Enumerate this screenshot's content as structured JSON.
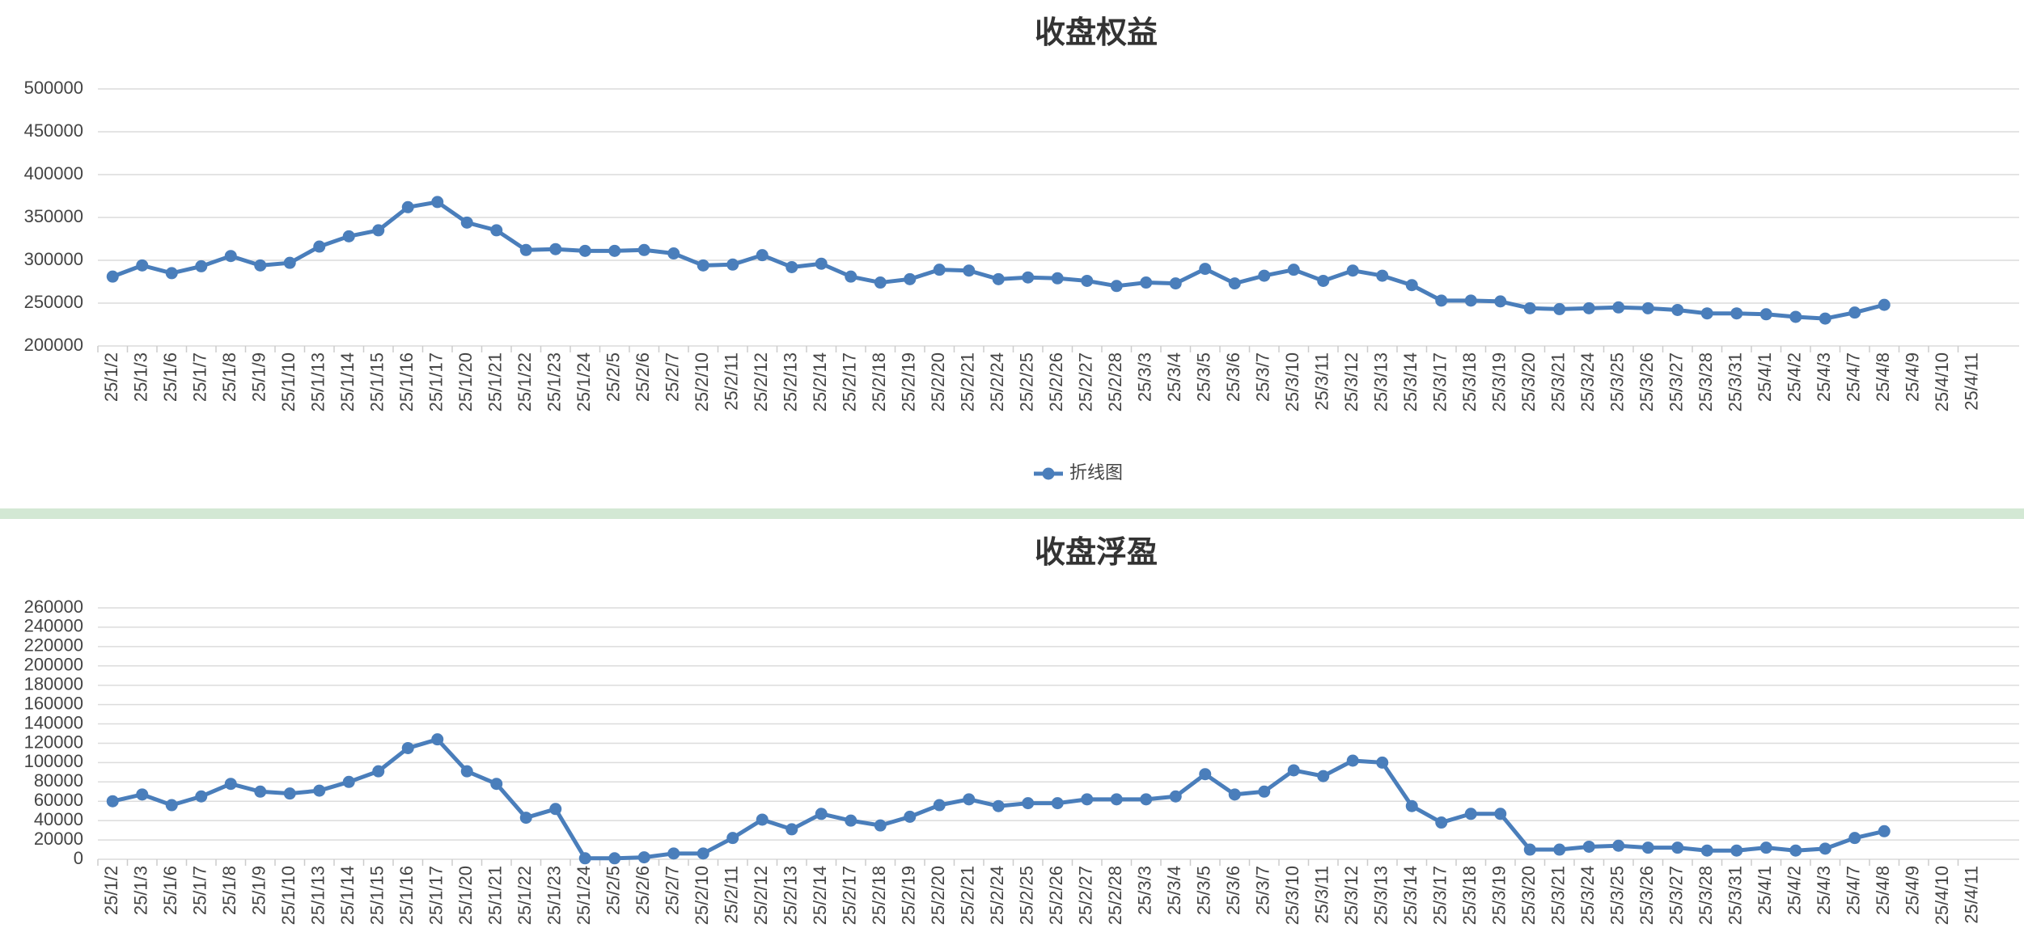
{
  "chart_data": [
    {
      "type": "line",
      "title": "收盘权益",
      "categories": [
        "25/1/2",
        "25/1/3",
        "25/1/6",
        "25/1/7",
        "25/1/8",
        "25/1/9",
        "25/1/10",
        "25/1/13",
        "25/1/14",
        "25/1/15",
        "25/1/16",
        "25/1/17",
        "25/1/20",
        "25/1/21",
        "25/1/22",
        "25/1/23",
        "25/1/24",
        "25/2/5",
        "25/2/6",
        "25/2/7",
        "25/2/10",
        "25/2/11",
        "25/2/12",
        "25/2/13",
        "25/2/14",
        "25/2/17",
        "25/2/18",
        "25/2/19",
        "25/2/20",
        "25/2/21",
        "25/2/24",
        "25/2/25",
        "25/2/26",
        "25/2/27",
        "25/2/28",
        "25/3/3",
        "25/3/4",
        "25/3/5",
        "25/3/6",
        "25/3/7",
        "25/3/10",
        "25/3/11",
        "25/3/12",
        "25/3/13",
        "25/3/14",
        "25/3/17",
        "25/3/18",
        "25/3/19",
        "25/3/20",
        "25/3/21",
        "25/3/24",
        "25/3/25",
        "25/3/26",
        "25/3/27",
        "25/3/28",
        "25/3/31",
        "25/4/1",
        "25/4/2",
        "25/4/3",
        "25/4/7",
        "25/4/8",
        "25/4/9",
        "25/4/10",
        "25/4/11"
      ],
      "series": [
        {
          "name": "折线图",
          "color": "#4a7ebb",
          "values": [
            281000,
            294000,
            285000,
            293000,
            305000,
            294000,
            297000,
            316000,
            328000,
            335000,
            362000,
            368000,
            344000,
            335000,
            312000,
            313000,
            311000,
            311000,
            312000,
            308000,
            294000,
            295000,
            306000,
            292000,
            296000,
            281000,
            274000,
            278000,
            289000,
            288000,
            278000,
            280000,
            279000,
            276000,
            270000,
            274000,
            273000,
            290000,
            273000,
            282000,
            289000,
            276000,
            288000,
            282000,
            271000,
            253000,
            253000,
            252000,
            244000,
            243000,
            244000,
            245000,
            244000,
            242000,
            238000,
            238000,
            237000,
            234000,
            232000,
            239000,
            248000,
            null,
            null,
            null
          ]
        }
      ],
      "ylim": [
        200000,
        500000
      ],
      "yticks": [
        200000,
        250000,
        300000,
        350000,
        400000,
        450000,
        500000
      ],
      "grid": true,
      "legend": "bottom"
    },
    {
      "type": "line",
      "title": "收盘浮盈",
      "categories": [
        "25/1/2",
        "25/1/3",
        "25/1/6",
        "25/1/7",
        "25/1/8",
        "25/1/9",
        "25/1/10",
        "25/1/13",
        "25/1/14",
        "25/1/15",
        "25/1/16",
        "25/1/17",
        "25/1/20",
        "25/1/21",
        "25/1/22",
        "25/1/23",
        "25/1/24",
        "25/2/5",
        "25/2/6",
        "25/2/7",
        "25/2/10",
        "25/2/11",
        "25/2/12",
        "25/2/13",
        "25/2/14",
        "25/2/17",
        "25/2/18",
        "25/2/19",
        "25/2/20",
        "25/2/21",
        "25/2/24",
        "25/2/25",
        "25/2/26",
        "25/2/27",
        "25/2/28",
        "25/3/3",
        "25/3/4",
        "25/3/5",
        "25/3/6",
        "25/3/7",
        "25/3/10",
        "25/3/11",
        "25/3/12",
        "25/3/13",
        "25/3/14",
        "25/3/17",
        "25/3/18",
        "25/3/19",
        "25/3/20",
        "25/3/21",
        "25/3/24",
        "25/3/25",
        "25/3/26",
        "25/3/27",
        "25/3/28",
        "25/3/31",
        "25/4/1",
        "25/4/2",
        "25/4/3",
        "25/4/7",
        "25/4/8",
        "25/4/9",
        "25/4/10",
        "25/4/11"
      ],
      "series": [
        {
          "color": "#4a7ebb",
          "values": [
            60000,
            67000,
            56000,
            65000,
            78000,
            70000,
            68000,
            71000,
            80000,
            91000,
            115000,
            124000,
            91000,
            78000,
            43000,
            52000,
            1000,
            1000,
            2000,
            6000,
            6000,
            22000,
            41000,
            31000,
            47000,
            40000,
            35000,
            44000,
            56000,
            62000,
            55000,
            58000,
            58000,
            62000,
            62000,
            62000,
            65000,
            88000,
            67000,
            70000,
            92000,
            86000,
            102000,
            100000,
            55000,
            38000,
            47000,
            47000,
            10000,
            10000,
            13000,
            14000,
            12000,
            12000,
            9000,
            9000,
            12000,
            9000,
            11000,
            22000,
            29000,
            null,
            null,
            null
          ]
        }
      ],
      "ylim": [
        0,
        260000
      ],
      "yticks": [
        0,
        20000,
        40000,
        60000,
        80000,
        100000,
        120000,
        140000,
        160000,
        180000,
        200000,
        220000,
        240000,
        260000
      ],
      "grid": true
    }
  ]
}
